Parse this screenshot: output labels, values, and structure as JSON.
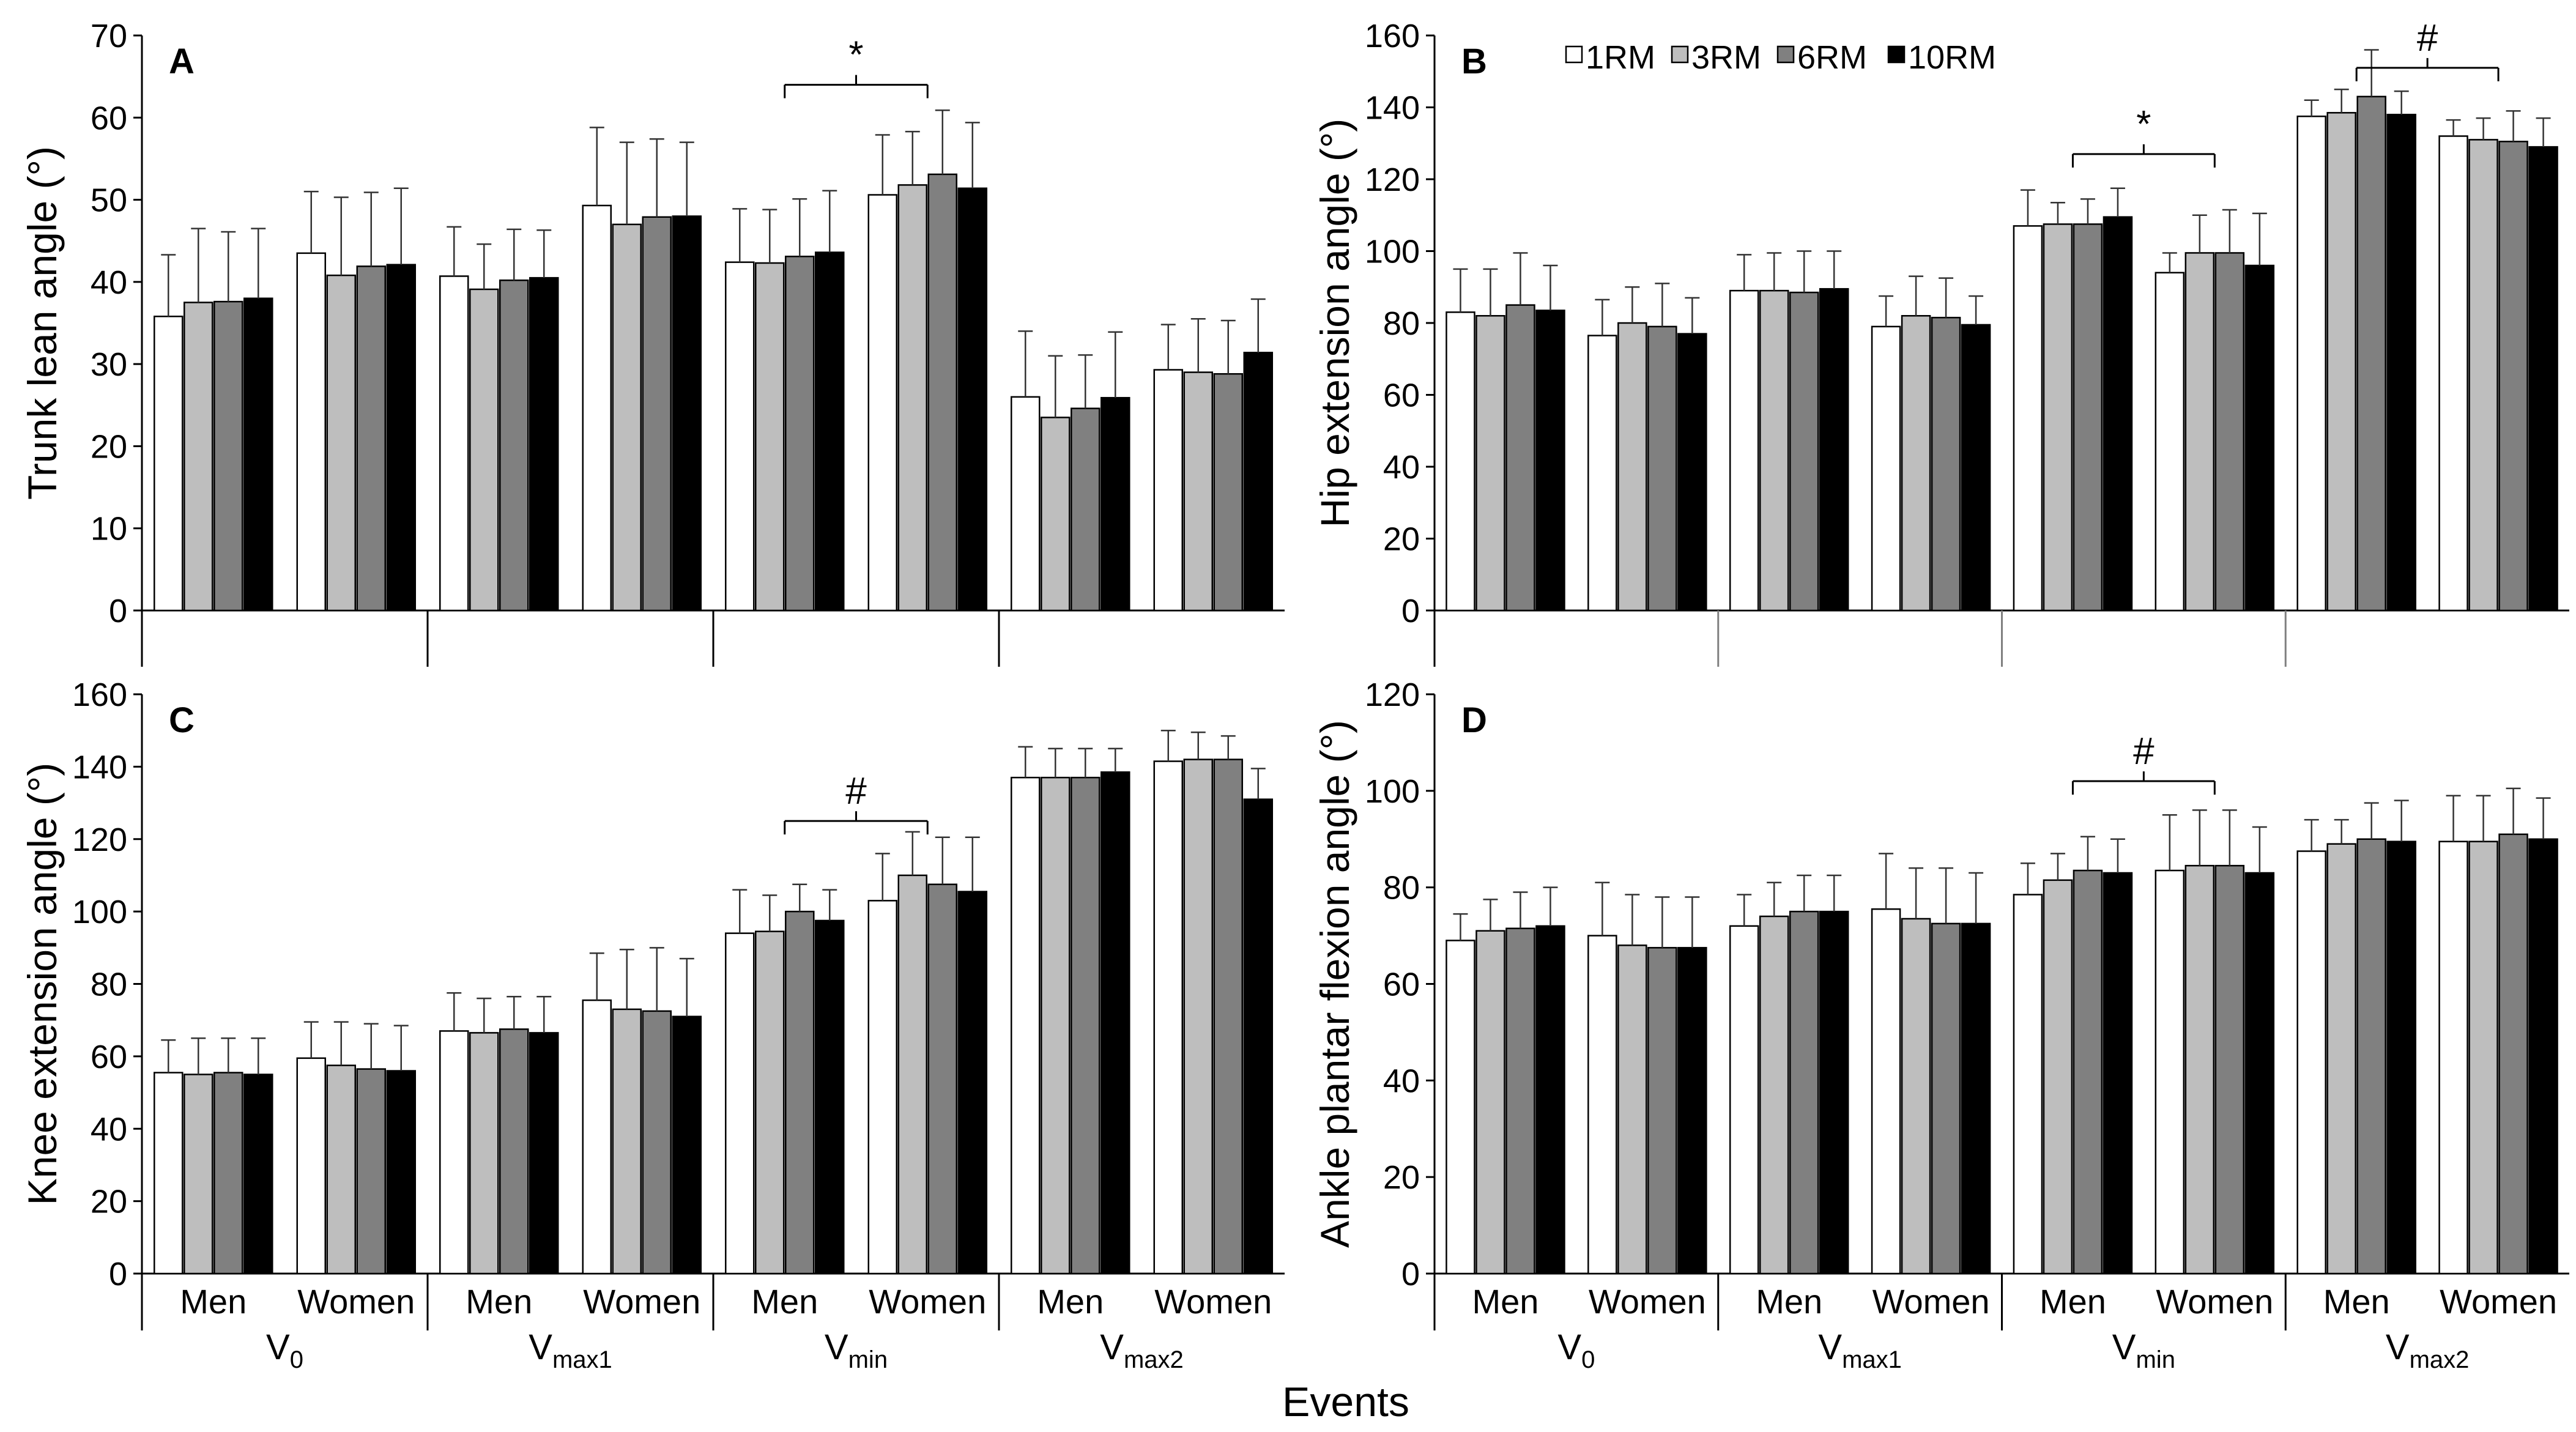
{
  "figure": {
    "xlabel": "Events"
  },
  "legend": [
    "1RM",
    "3RM",
    "6RM",
    "10RM"
  ],
  "colors": {
    "1RM": "#ffffff",
    "3RM": "#bebebe",
    "6RM": "#808080",
    "10RM": "#000000",
    "axis": "#000000",
    "divider": "#808080"
  },
  "event_labels": [
    {
      "main": "V",
      "sub": "0"
    },
    {
      "main": "V",
      "sub": "max1"
    },
    {
      "main": "V",
      "sub": "min"
    },
    {
      "main": "V",
      "sub": "max2"
    }
  ],
  "chart_data": [
    {
      "panel": "A",
      "type": "bar",
      "ylabel": "Trunk lean angle (°)",
      "ylim": [
        0,
        70
      ],
      "yticks": [
        0,
        10,
        20,
        30,
        40,
        50,
        60,
        70
      ],
      "show_group_labels": false,
      "groups": [
        "Men",
        "Women",
        "Men",
        "Women",
        "Men",
        "Women",
        "Men",
        "Women"
      ],
      "series": [
        {
          "name": "1RM",
          "values": [
            35.8,
            43.5,
            40.7,
            49.3,
            42.4,
            50.6,
            26.0,
            29.3
          ],
          "errors": [
            7.5,
            7.5,
            6.0,
            9.5,
            6.5,
            7.3,
            8.0,
            5.5
          ]
        },
        {
          "name": "3RM",
          "values": [
            37.5,
            40.8,
            39.1,
            47.0,
            42.3,
            51.8,
            23.5,
            29.0
          ],
          "errors": [
            9.0,
            9.5,
            5.5,
            10.0,
            6.5,
            6.5,
            7.5,
            6.5
          ]
        },
        {
          "name": "6RM",
          "values": [
            37.6,
            41.9,
            40.2,
            47.9,
            43.1,
            53.1,
            24.6,
            28.8
          ],
          "errors": [
            8.5,
            9.0,
            6.2,
            9.5,
            7.0,
            7.8,
            6.5,
            6.5
          ]
        },
        {
          "name": "10RM",
          "values": [
            38.0,
            42.1,
            40.5,
            48.0,
            43.6,
            51.4,
            25.9,
            31.4
          ],
          "errors": [
            8.5,
            9.3,
            5.8,
            9.0,
            7.5,
            8.0,
            8.0,
            6.5
          ]
        }
      ],
      "annotations": [
        {
          "symbol": "*",
          "from_group": 4,
          "to_group": 5,
          "y": 64
        }
      ]
    },
    {
      "panel": "B",
      "type": "bar",
      "ylabel": "Hip extension angle (°)",
      "ylim": [
        0,
        160
      ],
      "yticks": [
        0,
        20,
        40,
        60,
        80,
        100,
        120,
        140,
        160
      ],
      "show_group_labels": false,
      "groups": [
        "Men",
        "Women",
        "Men",
        "Women",
        "Men",
        "Women",
        "Men",
        "Women"
      ],
      "series": [
        {
          "name": "1RM",
          "values": [
            83,
            76.5,
            89,
            79,
            107,
            94,
            137.5,
            132
          ],
          "errors": [
            12,
            10,
            10,
            8.5,
            10,
            5.5,
            4.5,
            4.5
          ]
        },
        {
          "name": "3RM",
          "values": [
            82,
            80,
            89,
            82,
            107.5,
            99.5,
            138.5,
            131
          ],
          "errors": [
            13,
            10,
            10.5,
            11,
            6,
            10.5,
            6.5,
            6
          ]
        },
        {
          "name": "6RM",
          "values": [
            85,
            79,
            88.5,
            81.5,
            107.5,
            99.5,
            143,
            130.5
          ],
          "errors": [
            14.5,
            12,
            11.5,
            11,
            7,
            12,
            13,
            8.5
          ]
        },
        {
          "name": "10RM",
          "values": [
            83.5,
            77,
            89.5,
            79.5,
            109.5,
            96,
            138,
            129
          ],
          "errors": [
            12.5,
            10,
            10.5,
            8,
            8,
            14.5,
            6.5,
            8
          ]
        }
      ],
      "annotations": [
        {
          "symbol": "*",
          "from_group": 4,
          "to_group": 5,
          "y": 127
        },
        {
          "symbol": "#",
          "from_group": 6,
          "to_group": 7,
          "y": 151
        }
      ]
    },
    {
      "panel": "C",
      "type": "bar",
      "ylabel": "Knee extension angle (°)",
      "ylim": [
        0,
        160
      ],
      "yticks": [
        0,
        20,
        40,
        60,
        80,
        100,
        120,
        140,
        160
      ],
      "show_group_labels": true,
      "groups": [
        "Men",
        "Women",
        "Men",
        "Women",
        "Men",
        "Women",
        "Men",
        "Women"
      ],
      "series": [
        {
          "name": "1RM",
          "values": [
            55.5,
            59.5,
            67,
            75.5,
            94,
            103,
            137,
            141.5
          ],
          "errors": [
            9,
            10,
            10.5,
            13,
            12,
            13,
            8.5,
            8.5
          ]
        },
        {
          "name": "3RM",
          "values": [
            55,
            57.5,
            66.5,
            73,
            94.5,
            110,
            137,
            142
          ],
          "errors": [
            10,
            12,
            9.5,
            16.5,
            10,
            12,
            8,
            7.5
          ]
        },
        {
          "name": "6RM",
          "values": [
            55.5,
            56.5,
            67.5,
            72.5,
            100,
            107.5,
            137,
            142
          ],
          "errors": [
            9.5,
            12.5,
            9,
            17.5,
            7.5,
            13,
            8,
            6.5
          ]
        },
        {
          "name": "10RM",
          "values": [
            55,
            56,
            66.5,
            71,
            97.5,
            105.5,
            138.5,
            131
          ],
          "errors": [
            10,
            12.5,
            10,
            16,
            8.5,
            15,
            6.5,
            8.5
          ]
        }
      ],
      "annotations": [
        {
          "symbol": "#",
          "from_group": 4,
          "to_group": 5,
          "y": 125
        }
      ]
    },
    {
      "panel": "D",
      "type": "bar",
      "ylabel": "Ankle plantar flexion angle (°)",
      "ylim": [
        0,
        120
      ],
      "yticks": [
        0,
        20,
        40,
        60,
        80,
        100,
        120
      ],
      "show_group_labels": true,
      "groups": [
        "Men",
        "Women",
        "Men",
        "Women",
        "Men",
        "Women",
        "Men",
        "Women"
      ],
      "series": [
        {
          "name": "1RM",
          "values": [
            69,
            70,
            72,
            75.5,
            78.5,
            83.5,
            87.5,
            89.5
          ],
          "errors": [
            5.5,
            11,
            6.5,
            11.5,
            6.5,
            11.5,
            6.5,
            9.5
          ]
        },
        {
          "name": "3RM",
          "values": [
            71,
            68,
            74,
            73.5,
            81.5,
            84.5,
            89,
            89.5
          ],
          "errors": [
            6.5,
            10.5,
            7,
            10.5,
            5.5,
            11.5,
            5,
            9.5
          ]
        },
        {
          "name": "6RM",
          "values": [
            71.5,
            67.5,
            75,
            72.5,
            83.5,
            84.5,
            90,
            91
          ],
          "errors": [
            7.5,
            10.5,
            7.5,
            11.5,
            7,
            11.5,
            7.5,
            9.5
          ]
        },
        {
          "name": "10RM",
          "values": [
            72,
            67.5,
            75,
            72.5,
            83,
            83,
            89.5,
            90
          ],
          "errors": [
            8,
            10.5,
            7.5,
            10.5,
            7,
            9.5,
            8.5,
            8.5
          ]
        }
      ],
      "annotations": [
        {
          "symbol": "#",
          "from_group": 4,
          "to_group": 5,
          "y": 102
        }
      ]
    }
  ]
}
